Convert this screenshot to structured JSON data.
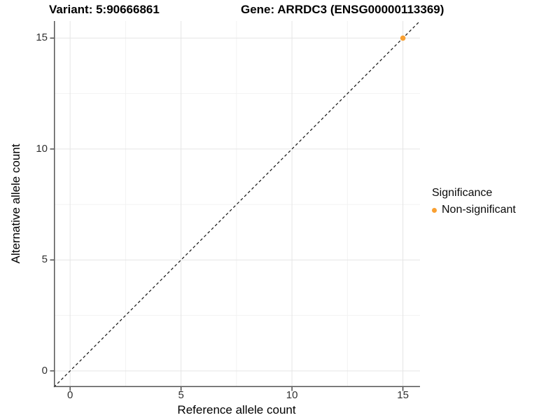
{
  "header": {
    "variant_title": "Variant: 5:90666861",
    "gene_title": "Gene: ARRDC3 (ENSG00000113369)"
  },
  "chart_data": {
    "type": "scatter",
    "xlabel": "Reference allele count",
    "ylabel": "Alternative allele count",
    "xlim": [
      -0.73,
      15.77
    ],
    "ylim": [
      -0.73,
      15.77
    ],
    "x_ticks": [
      0,
      5,
      10,
      15
    ],
    "y_ticks": [
      0,
      5,
      10,
      15
    ],
    "x_minor_ticks": [
      2.5,
      7.5,
      12.5
    ],
    "y_minor_ticks": [
      2.5,
      7.5,
      12.5
    ],
    "grid": true,
    "legend_position": "right",
    "series": [
      {
        "name": "Non-significant",
        "color": "#F9A032",
        "points": [
          {
            "x": 15,
            "y": 15
          }
        ]
      }
    ],
    "reference_line": {
      "slope": 1,
      "intercept": 0,
      "style": "dashed",
      "color": "#111111"
    }
  },
  "legend": {
    "title": "Significance",
    "items": [
      {
        "label": "Non-significant",
        "color": "#F9A032"
      }
    ]
  },
  "colors": {
    "background": "#ffffff",
    "grid_major": "#e5e5e5",
    "grid_minor": "#f2f2f2",
    "axis_line": "#565656",
    "tick_mark": "#333333",
    "tick_text": "#303030",
    "title_text": "#000000",
    "point": "#F9A032"
  }
}
